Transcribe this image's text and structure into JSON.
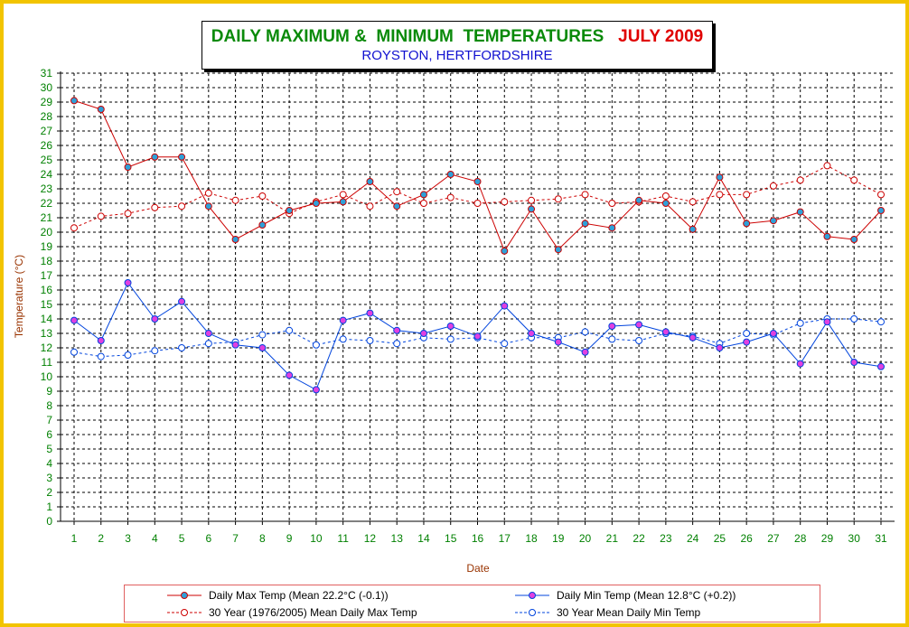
{
  "title": {
    "main": "DAILY MAXIMUM &  MINIMUM  TEMPERATURES",
    "month": "JULY 2009",
    "subtitle": "ROYSTON, HERTFORDSHIRE"
  },
  "colors": {
    "frame": "#f2c400",
    "max": "#cc0000",
    "min": "#0044dd",
    "marker_fill": "#2fa0d8",
    "min_marker_fill": "#e040e0",
    "tick_label": "#008000",
    "axis_title": "#993300",
    "grid": "#000000"
  },
  "chart_data": {
    "type": "line",
    "xlabel": "Date",
    "ylabel": "Temperature (°C)",
    "ylim": [
      0,
      31
    ],
    "xlim": [
      1,
      31
    ],
    "grid": true,
    "legend_position": "bottom",
    "x": [
      1,
      2,
      3,
      4,
      5,
      6,
      7,
      8,
      9,
      10,
      11,
      12,
      13,
      14,
      15,
      16,
      17,
      18,
      19,
      20,
      21,
      22,
      23,
      24,
      25,
      26,
      27,
      28,
      29,
      30,
      31
    ],
    "series": [
      {
        "name": "Daily Max Temp (Mean 22.2°C (-0.1))",
        "style": "solid",
        "color": "#cc0000",
        "marker": "filled-circle",
        "values": [
          29.1,
          28.5,
          24.5,
          25.2,
          25.2,
          21.8,
          19.5,
          20.5,
          21.5,
          22.0,
          22.1,
          23.5,
          21.8,
          22.6,
          24.0,
          23.5,
          18.7,
          21.6,
          18.8,
          20.6,
          20.3,
          22.2,
          22.0,
          20.2,
          23.8,
          20.6,
          20.8,
          21.4,
          19.7,
          19.5,
          21.5
        ]
      },
      {
        "name": "Daily Min Temp (Mean 12.8°C (+0.2))",
        "style": "solid",
        "color": "#0044dd",
        "marker": "filled-circle",
        "values": [
          13.9,
          12.5,
          16.5,
          14.0,
          15.2,
          13.0,
          12.2,
          12.0,
          10.1,
          9.1,
          13.9,
          14.4,
          13.2,
          13.0,
          13.5,
          12.8,
          14.9,
          13.0,
          12.4,
          11.7,
          13.5,
          13.6,
          13.1,
          12.7,
          12.0,
          12.4,
          13.0,
          10.9,
          13.8,
          11.0,
          10.7
        ]
      },
      {
        "name": "30 Year (1976/2005) Mean Daily Max Temp",
        "style": "dashed",
        "color": "#cc0000",
        "marker": "open-circle",
        "values": [
          20.3,
          21.1,
          21.3,
          21.7,
          21.8,
          22.7,
          22.2,
          22.5,
          21.3,
          22.1,
          22.6,
          21.8,
          22.8,
          22.0,
          22.4,
          22.0,
          22.1,
          22.2,
          22.3,
          22.6,
          22.0,
          22.1,
          22.5,
          22.1,
          22.6,
          22.6,
          23.2,
          23.6,
          24.6,
          23.6,
          22.6
        ]
      },
      {
        "name": "30 Year Mean Daily Min Temp",
        "style": "dashed",
        "color": "#0044dd",
        "marker": "open-circle",
        "values": [
          11.7,
          11.4,
          11.5,
          11.8,
          12.0,
          12.3,
          12.4,
          12.9,
          13.2,
          12.2,
          12.6,
          12.5,
          12.3,
          12.7,
          12.6,
          12.7,
          12.3,
          12.7,
          12.7,
          13.1,
          12.6,
          12.5,
          13.0,
          12.8,
          12.3,
          13.0,
          12.9,
          13.7,
          14.0,
          14.0,
          13.8
        ]
      }
    ]
  }
}
